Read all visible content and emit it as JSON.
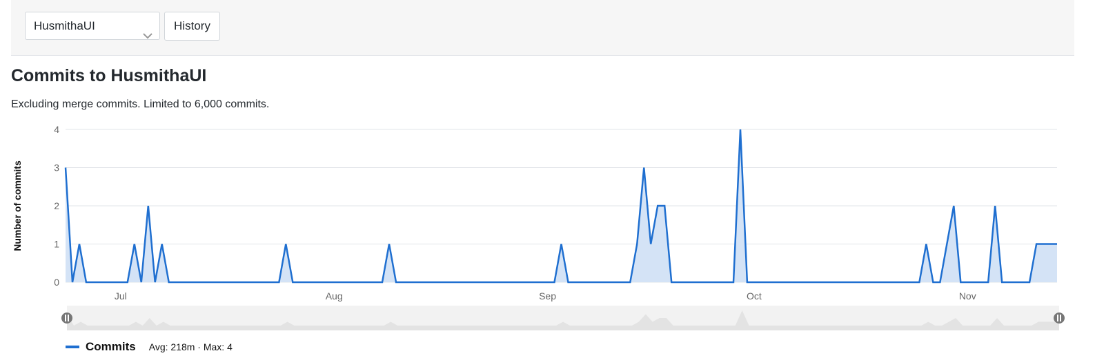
{
  "toolbar": {
    "repo_select_value": "HusmithaUI",
    "history_label": "History"
  },
  "page": {
    "title": "Commits to HusmithaUI",
    "subtitle": "Excluding merge commits. Limited to 6,000 commits."
  },
  "legend": {
    "series_name": "Commits",
    "stats": "Avg: 218m · Max: 4"
  },
  "colors": {
    "series_line": "#1f6fd0",
    "series_fill": "#d4e3f6",
    "grid": "#e1e4e8"
  },
  "chart_data": {
    "type": "area",
    "ylabel": "Number of commits",
    "xlabel": "",
    "ylim": [
      0,
      4
    ],
    "yticks": [
      0,
      1,
      2,
      3,
      4
    ],
    "xlim": [
      "2023-06-23",
      "2023-11-14"
    ],
    "xticks": [
      {
        "date": "2023-07-01",
        "label": "Jul"
      },
      {
        "date": "2023-08-01",
        "label": "Aug"
      },
      {
        "date": "2023-09-01",
        "label": "Sep"
      },
      {
        "date": "2023-10-01",
        "label": "Oct"
      },
      {
        "date": "2023-11-01",
        "label": "Nov"
      }
    ],
    "grid": true,
    "legend_position": "bottom-left",
    "series": [
      {
        "name": "Commits",
        "points": [
          [
            "2023-06-23",
            3
          ],
          [
            "2023-06-24",
            0
          ],
          [
            "2023-06-25",
            1
          ],
          [
            "2023-06-26",
            0
          ],
          [
            "2023-07-02",
            0
          ],
          [
            "2023-07-03",
            1
          ],
          [
            "2023-07-04",
            0
          ],
          [
            "2023-07-05",
            2
          ],
          [
            "2023-07-06",
            0
          ],
          [
            "2023-07-07",
            1
          ],
          [
            "2023-07-08",
            0
          ],
          [
            "2023-07-24",
            0
          ],
          [
            "2023-07-25",
            1
          ],
          [
            "2023-07-26",
            0
          ],
          [
            "2023-08-08",
            0
          ],
          [
            "2023-08-09",
            1
          ],
          [
            "2023-08-10",
            0
          ],
          [
            "2023-09-02",
            0
          ],
          [
            "2023-09-03",
            1
          ],
          [
            "2023-09-04",
            0
          ],
          [
            "2023-09-13",
            0
          ],
          [
            "2023-09-14",
            1
          ],
          [
            "2023-09-15",
            3
          ],
          [
            "2023-09-16",
            1
          ],
          [
            "2023-09-17",
            2
          ],
          [
            "2023-09-18",
            2
          ],
          [
            "2023-09-19",
            0
          ],
          [
            "2023-09-28",
            0
          ],
          [
            "2023-09-29",
            4
          ],
          [
            "2023-09-30",
            0
          ],
          [
            "2023-10-25",
            0
          ],
          [
            "2023-10-26",
            1
          ],
          [
            "2023-10-27",
            0
          ],
          [
            "2023-10-28",
            0
          ],
          [
            "2023-10-30",
            2
          ],
          [
            "2023-10-31",
            0
          ],
          [
            "2023-11-04",
            0
          ],
          [
            "2023-11-05",
            2
          ],
          [
            "2023-11-06",
            0
          ],
          [
            "2023-11-10",
            0
          ],
          [
            "2023-11-11",
            1
          ],
          [
            "2023-11-12",
            1
          ]
        ]
      }
    ]
  }
}
